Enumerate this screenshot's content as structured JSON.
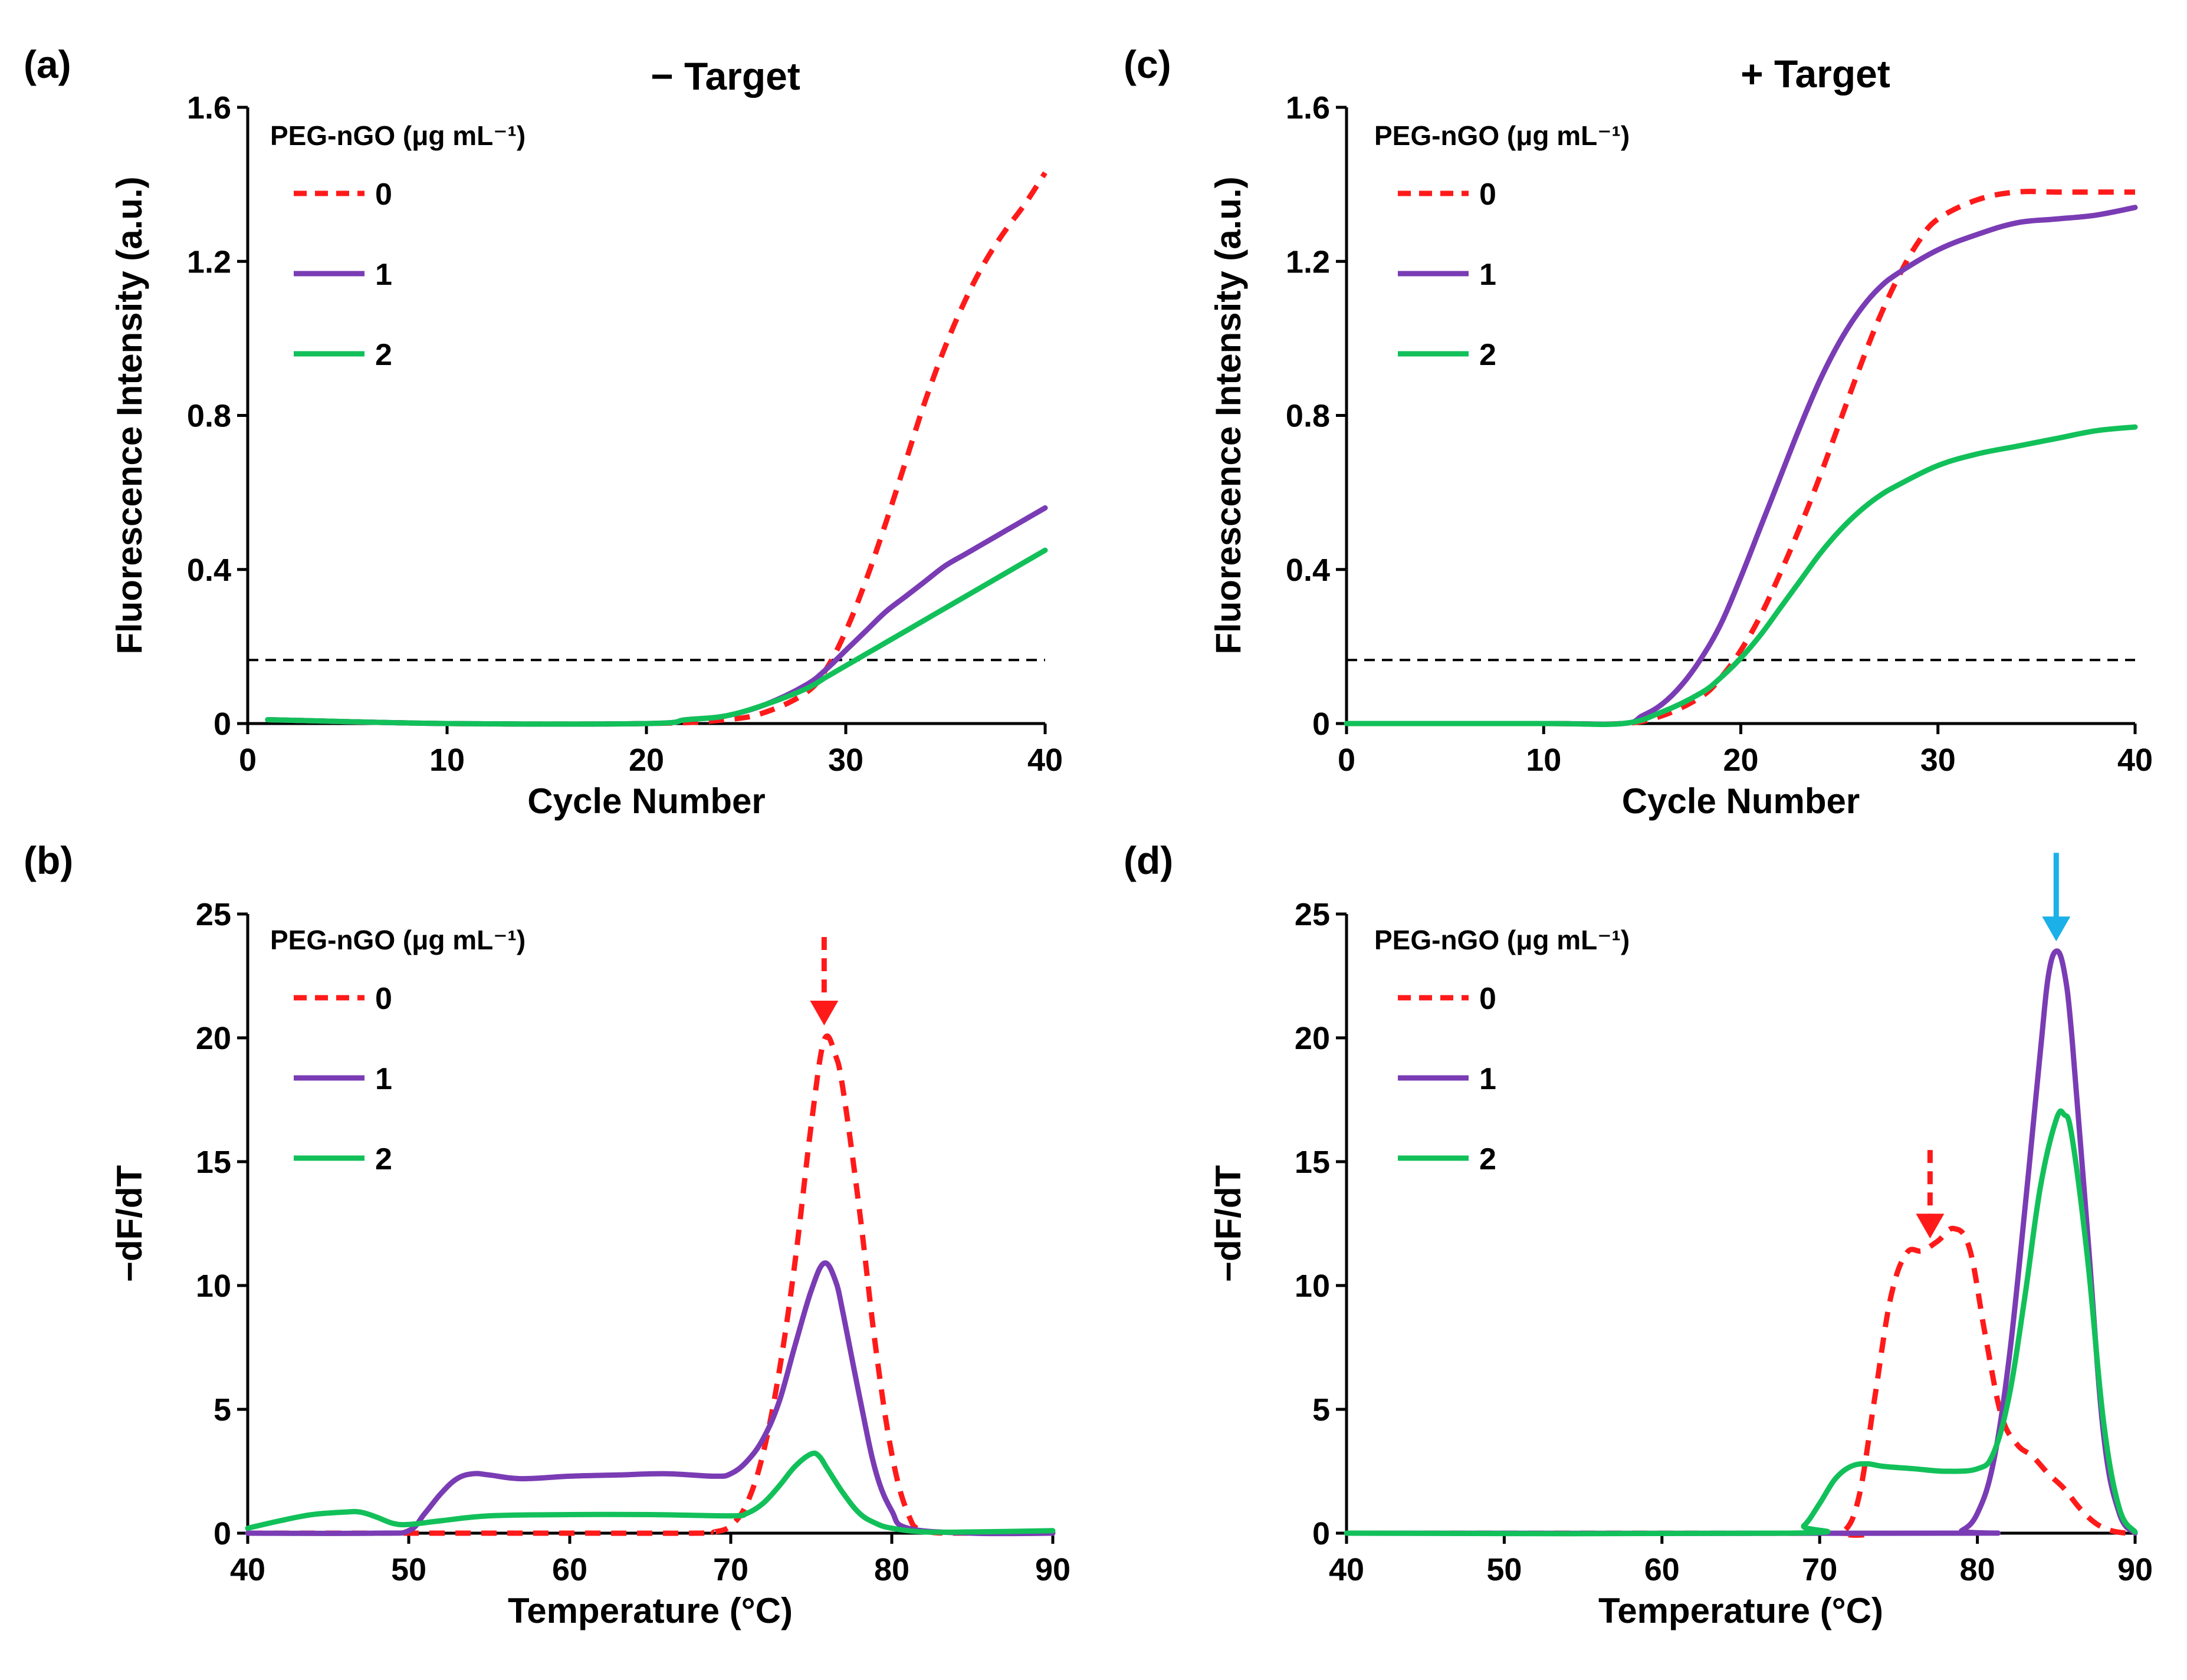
{
  "figure": {
    "legend_title": "PEG-nGO (μg mL⁻¹)",
    "series_colors": {
      "0": "#ff1a1a",
      "1": "#7a3cb4",
      "2": "#12c05a"
    },
    "arrow_colors": {
      "red": "#ff1a1a",
      "blue": "#1ab0e8"
    },
    "threshold_color": "#000000"
  },
  "chart_data": [
    {
      "panel": "(a)",
      "type": "line",
      "title": "− Target",
      "xlabel": "Cycle Number",
      "ylabel": "Fluorescence Intensity (a.u.)",
      "xlim": [
        0,
        40
      ],
      "ylim": [
        0,
        1.6
      ],
      "xticks": [
        "0",
        "10",
        "20",
        "30",
        "40"
      ],
      "yticks": [
        "0",
        "0.4",
        "0.8",
        "1.2",
        "1.6"
      ],
      "xtick_values": [
        0,
        10,
        20,
        30,
        40
      ],
      "ytick_values": [
        0,
        0.4,
        0.8,
        1.2,
        1.6
      ],
      "threshold": 0.165,
      "legend_position": "top-left",
      "series": [
        {
          "name": "0",
          "style": "dashed",
          "x": [
            1,
            10,
            20,
            24,
            26,
            28,
            29,
            30,
            31,
            32,
            33,
            34,
            35,
            36,
            37,
            38,
            39,
            40
          ],
          "y": [
            0.01,
            0.0,
            0.0,
            0.01,
            0.03,
            0.08,
            0.14,
            0.24,
            0.37,
            0.52,
            0.68,
            0.84,
            0.98,
            1.1,
            1.2,
            1.28,
            1.35,
            1.43
          ]
        },
        {
          "name": "1",
          "style": "solid",
          "x": [
            1,
            10,
            20,
            22,
            24,
            26,
            28,
            29,
            30,
            31,
            32,
            33,
            34,
            35,
            36,
            37,
            38,
            39,
            40
          ],
          "y": [
            0.01,
            0.0,
            0.0,
            0.01,
            0.02,
            0.05,
            0.1,
            0.14,
            0.19,
            0.24,
            0.29,
            0.33,
            0.37,
            0.41,
            0.44,
            0.47,
            0.5,
            0.53,
            0.56
          ]
        },
        {
          "name": "2",
          "style": "solid",
          "x": [
            1,
            10,
            20,
            22,
            24,
            26,
            28,
            29,
            30,
            31,
            32,
            33,
            34,
            35,
            36,
            37,
            38,
            39,
            40
          ],
          "y": [
            0.01,
            0.0,
            0.0,
            0.01,
            0.02,
            0.05,
            0.09,
            0.12,
            0.15,
            0.18,
            0.21,
            0.24,
            0.27,
            0.3,
            0.33,
            0.36,
            0.39,
            0.42,
            0.45
          ]
        }
      ]
    },
    {
      "panel": "(c)",
      "type": "line",
      "title": "+ Target",
      "xlabel": "Cycle Number",
      "ylabel": "Fluorescence Intensity (a.u.)",
      "xlim": [
        0,
        40
      ],
      "ylim": [
        0,
        1.6
      ],
      "xticks": [
        "0",
        "10",
        "20",
        "30",
        "40"
      ],
      "yticks": [
        "0",
        "0.4",
        "0.8",
        "1.2",
        "1.6"
      ],
      "xtick_values": [
        0,
        10,
        20,
        30,
        40
      ],
      "ytick_values": [
        0,
        0.4,
        0.8,
        1.2,
        1.6
      ],
      "threshold": 0.165,
      "legend_position": "top-left",
      "series": [
        {
          "name": "0",
          "style": "dashed",
          "x": [
            0,
            10,
            14,
            16,
            18,
            19,
            20,
            21,
            22,
            23,
            24,
            25,
            26,
            27,
            28,
            29,
            30,
            32,
            34,
            36,
            38,
            40
          ],
          "y": [
            0.0,
            0.0,
            0.0,
            0.02,
            0.07,
            0.12,
            0.19,
            0.28,
            0.39,
            0.51,
            0.64,
            0.78,
            0.92,
            1.05,
            1.16,
            1.25,
            1.31,
            1.36,
            1.38,
            1.38,
            1.38,
            1.38
          ]
        },
        {
          "name": "1",
          "style": "solid",
          "x": [
            0,
            10,
            14,
            15,
            16,
            17,
            18,
            19,
            20,
            21,
            22,
            23,
            24,
            25,
            26,
            27,
            28,
            30,
            32,
            34,
            36,
            38,
            40
          ],
          "y": [
            0.0,
            0.0,
            0.0,
            0.02,
            0.05,
            0.1,
            0.17,
            0.26,
            0.38,
            0.51,
            0.64,
            0.77,
            0.89,
            0.99,
            1.07,
            1.13,
            1.17,
            1.23,
            1.27,
            1.3,
            1.31,
            1.32,
            1.34
          ]
        },
        {
          "name": "2",
          "style": "solid",
          "x": [
            0,
            10,
            14,
            16,
            18,
            19,
            20,
            21,
            22,
            23,
            24,
            25,
            26,
            27,
            28,
            30,
            32,
            34,
            36,
            38,
            40
          ],
          "y": [
            0.0,
            0.0,
            0.0,
            0.03,
            0.08,
            0.12,
            0.17,
            0.23,
            0.3,
            0.37,
            0.44,
            0.5,
            0.55,
            0.59,
            0.62,
            0.67,
            0.7,
            0.72,
            0.74,
            0.76,
            0.77
          ]
        }
      ]
    },
    {
      "panel": "(b)",
      "type": "line",
      "title": "",
      "xlabel": "Temperature (°C)",
      "ylabel": "−dF/dT",
      "xlim": [
        40,
        90
      ],
      "ylim": [
        0,
        25
      ],
      "xticks": [
        "40",
        "50",
        "60",
        "70",
        "80",
        "90"
      ],
      "yticks": [
        "0",
        "5",
        "10",
        "15",
        "20",
        "25"
      ],
      "xtick_values": [
        40,
        50,
        60,
        70,
        80,
        90
      ],
      "ytick_values": [
        0,
        5,
        10,
        15,
        20,
        25
      ],
      "threshold": null,
      "legend_position": "top-left",
      "arrows": [
        {
          "x": 75.8,
          "color": "red",
          "style": "dashed"
        }
      ],
      "series": [
        {
          "name": "0",
          "style": "dashed",
          "x": [
            40,
            50,
            60,
            68,
            69,
            70,
            71,
            72,
            73,
            74,
            75,
            75.8,
            76.5,
            77,
            78,
            79,
            80,
            81,
            82,
            85,
            90
          ],
          "y": [
            0,
            0,
            0,
            0,
            0.05,
            0.3,
            1.2,
            3.2,
            6.5,
            11,
            16.5,
            19.9,
            19.3,
            17.8,
            13,
            7.5,
            3.2,
            0.8,
            0.1,
            0,
            0
          ]
        },
        {
          "name": "1",
          "style": "solid",
          "x": [
            40,
            48,
            50,
            51,
            52,
            53,
            54,
            55,
            57,
            60,
            63,
            66,
            69,
            70,
            71,
            72,
            73,
            74,
            75,
            75.8,
            76.5,
            77,
            78,
            79,
            80,
            81,
            85,
            90
          ],
          "y": [
            0,
            0,
            0.1,
            0.8,
            1.6,
            2.2,
            2.4,
            2.35,
            2.2,
            2.3,
            2.35,
            2.4,
            2.3,
            2.4,
            2.9,
            3.8,
            5.3,
            7.6,
            9.8,
            10.9,
            10.2,
            8.8,
            5.5,
            2.5,
            0.9,
            0.2,
            0,
            0
          ]
        },
        {
          "name": "2",
          "style": "solid",
          "x": [
            40,
            42,
            44,
            46,
            47,
            48,
            49,
            50,
            52,
            55,
            60,
            65,
            70,
            71,
            72,
            73,
            74,
            75,
            75.5,
            76,
            77,
            78,
            79,
            80,
            82,
            85,
            90
          ],
          "y": [
            0.2,
            0.5,
            0.75,
            0.85,
            0.85,
            0.65,
            0.4,
            0.35,
            0.5,
            0.7,
            0.75,
            0.75,
            0.7,
            0.8,
            1.2,
            1.9,
            2.7,
            3.2,
            3.1,
            2.6,
            1.6,
            0.8,
            0.4,
            0.2,
            0.05,
            0.05,
            0.1
          ]
        }
      ]
    },
    {
      "panel": "(d)",
      "type": "line",
      "title": "",
      "xlabel": "Temperature (°C)",
      "ylabel": "−dF/dT",
      "xlim": [
        40,
        90
      ],
      "ylim": [
        0,
        25
      ],
      "xticks": [
        "40",
        "50",
        "60",
        "70",
        "80",
        "90"
      ],
      "yticks": [
        "0",
        "5",
        "10",
        "15",
        "20",
        "25"
      ],
      "xtick_values": [
        40,
        50,
        60,
        70,
        80,
        90
      ],
      "ytick_values": [
        0,
        5,
        10,
        15,
        20,
        25
      ],
      "threshold": null,
      "legend_position": "top-left",
      "arrows": [
        {
          "x": 77,
          "color": "red",
          "style": "dashed",
          "tip_y": 11.9
        },
        {
          "x": 85,
          "color": "blue",
          "style": "solid",
          "tip_y": 23.9
        }
      ],
      "series": [
        {
          "name": "0",
          "style": "dashed",
          "x": [
            40,
            70,
            71.5,
            72.5,
            73.5,
            74.5,
            75.5,
            76.5,
            77.5,
            78.5,
            79.5,
            80.5,
            81.5,
            82.5,
            83.5,
            84.5,
            85.5,
            86.5,
            87.5,
            88.5,
            89.5,
            90
          ],
          "y": [
            0,
            0,
            0.05,
            1.5,
            5.5,
            9.5,
            11.3,
            11.4,
            11.8,
            12.3,
            11.5,
            8,
            4.8,
            3.6,
            3.1,
            2.4,
            1.8,
            1,
            0.4,
            0.1,
            0,
            0
          ]
        },
        {
          "name": "1",
          "style": "solid",
          "x": [
            40,
            78,
            79,
            80,
            81,
            82,
            83,
            84,
            84.5,
            85,
            85.5,
            86,
            87,
            88,
            89,
            90
          ],
          "y": [
            0,
            0,
            0.1,
            0.8,
            2.8,
            7,
            13,
            19.5,
            22.5,
            23.5,
            22.7,
            20,
            12,
            4,
            0.8,
            0
          ]
        },
        {
          "name": "2",
          "style": "solid",
          "x": [
            40,
            68,
            69,
            70,
            71,
            72,
            73,
            74,
            76,
            78,
            80,
            81,
            82,
            83,
            84,
            85,
            85.5,
            86,
            87,
            88,
            89,
            90
          ],
          "y": [
            0,
            0,
            0.3,
            1.2,
            2.2,
            2.7,
            2.8,
            2.7,
            2.6,
            2.5,
            2.6,
            3.2,
            5.5,
            9.5,
            14,
            16.7,
            16.9,
            16,
            11,
            4.5,
            1,
            0.05
          ]
        }
      ]
    }
  ]
}
